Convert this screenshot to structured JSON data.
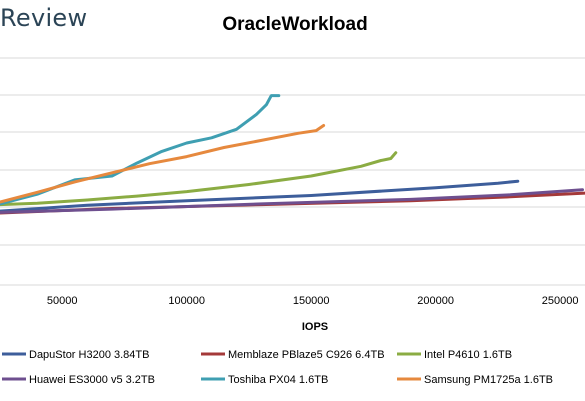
{
  "brand": "Review",
  "chart_data": {
    "type": "line",
    "title": "OracleWorkload",
    "xlabel": "IOPS",
    "ylabel": "",
    "xlim": [
      25000,
      260000
    ],
    "x_ticks": [
      50000,
      100000,
      150000,
      200000,
      250000
    ],
    "grid": "horizontal",
    "legend_position": "bottom",
    "series": [
      {
        "name": "DapuStor H3200 3.84TB",
        "color": "#3d5e9b",
        "points": [
          [
            25000,
            1.14
          ],
          [
            60000,
            1.23
          ],
          [
            100000,
            1.3
          ],
          [
            150000,
            1.38
          ],
          [
            200000,
            1.5
          ],
          [
            225000,
            1.57
          ],
          [
            233000,
            1.6
          ]
        ]
      },
      {
        "name": "Memblaze PBlaze5 C926 6.4TB",
        "color": "#a43939",
        "points": [
          [
            25000,
            1.11
          ],
          [
            70000,
            1.18
          ],
          [
            130000,
            1.24
          ],
          [
            190000,
            1.3
          ],
          [
            230000,
            1.36
          ],
          [
            262000,
            1.42
          ]
        ]
      },
      {
        "name": "Intel P4610 1.6TB",
        "color": "#8bac43",
        "points": [
          [
            25000,
            1.24
          ],
          [
            40000,
            1.26
          ],
          [
            60000,
            1.31
          ],
          [
            80000,
            1.37
          ],
          [
            100000,
            1.44
          ],
          [
            125000,
            1.55
          ],
          [
            150000,
            1.68
          ],
          [
            170000,
            1.83
          ],
          [
            178000,
            1.92
          ],
          [
            182000,
            1.95
          ],
          [
            184000,
            2.04
          ]
        ]
      },
      {
        "name": "Huawei ES3000 v5 3.2TB",
        "color": "#6e4f8f",
        "points": [
          [
            25000,
            1.12
          ],
          [
            70000,
            1.17
          ],
          [
            130000,
            1.25
          ],
          [
            190000,
            1.32
          ],
          [
            230000,
            1.39
          ],
          [
            259000,
            1.47
          ]
        ]
      },
      {
        "name": "Toshiba PX04 1.6TB",
        "color": "#3f9fb2",
        "points": [
          [
            25000,
            1.25
          ],
          [
            40000,
            1.4
          ],
          [
            55000,
            1.62
          ],
          [
            70000,
            1.68
          ],
          [
            80000,
            1.88
          ],
          [
            90000,
            2.06
          ],
          [
            100000,
            2.19
          ],
          [
            110000,
            2.27
          ],
          [
            120000,
            2.4
          ],
          [
            128000,
            2.63
          ],
          [
            132000,
            2.78
          ],
          [
            134000,
            2.92
          ],
          [
            137000,
            2.92
          ]
        ]
      },
      {
        "name": "Samsung PM1725a 1.6TB",
        "color": "#e6893e",
        "points": [
          [
            25000,
            1.28
          ],
          [
            40000,
            1.43
          ],
          [
            55000,
            1.59
          ],
          [
            70000,
            1.73
          ],
          [
            85000,
            1.87
          ],
          [
            100000,
            1.98
          ],
          [
            115000,
            2.12
          ],
          [
            130000,
            2.23
          ],
          [
            145000,
            2.34
          ],
          [
            152000,
            2.38
          ],
          [
            155000,
            2.46
          ]
        ]
      }
    ]
  }
}
